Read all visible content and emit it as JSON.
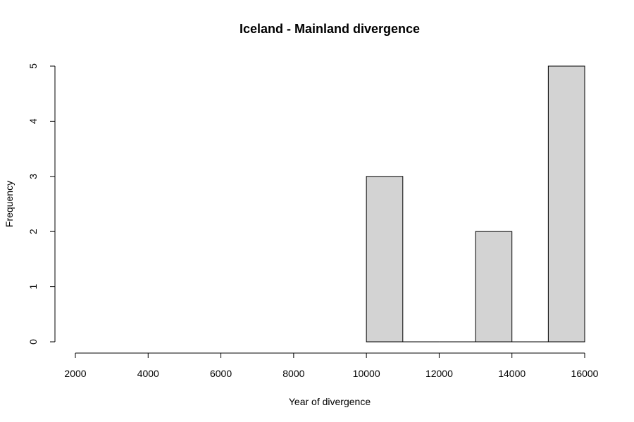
{
  "chart_data": {
    "type": "bar",
    "title": "Iceland - Mainland divergence",
    "xlabel": "Year of divergence",
    "ylabel": "Frequency",
    "xlim": [
      2000,
      16000
    ],
    "ylim": [
      0,
      5
    ],
    "x_ticks": [
      "2000",
      "4000",
      "6000",
      "8000",
      "10000",
      "12000",
      "14000",
      "16000"
    ],
    "y_ticks": [
      "0",
      "1",
      "2",
      "3",
      "4",
      "5"
    ],
    "bins": [
      {
        "start": 10000,
        "end": 11000,
        "value": 3
      },
      {
        "start": 11000,
        "end": 12000,
        "value": 0
      },
      {
        "start": 12000,
        "end": 13000,
        "value": 0
      },
      {
        "start": 13000,
        "end": 14000,
        "value": 2
      },
      {
        "start": 14000,
        "end": 15000,
        "value": 0
      },
      {
        "start": 15000,
        "end": 16000,
        "value": 5
      }
    ],
    "bar_color": "#d3d3d3",
    "grid": false,
    "legend": "none"
  }
}
